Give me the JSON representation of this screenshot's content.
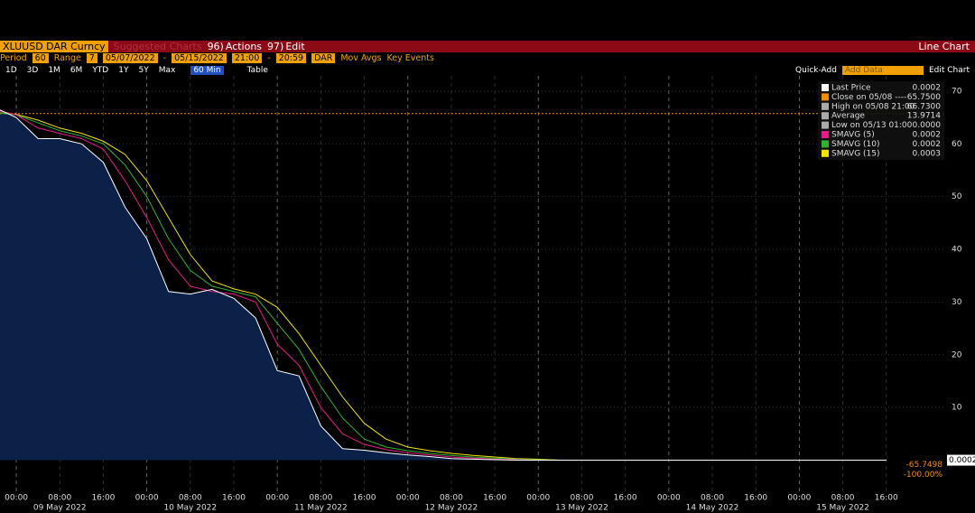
{
  "toolbar": {
    "ticker": "XLUUSD DAR Curncy",
    "suggested": "Suggested Charts",
    "actions_key": "96)",
    "actions": "Actions",
    "edit_key": "97)",
    "edit": "Edit",
    "chart_kind": "Line Chart"
  },
  "settings": {
    "period_label": "Period",
    "period": "60",
    "range_label": "Range",
    "range_key": "7",
    "start": "05/07/2022",
    "dash1": "-",
    "end": "05/15/2022",
    "t_start": "21:00",
    "dash2": "-",
    "t_end": "20:59",
    "tz": "DAR",
    "mov_avgs": "Mov Avgs",
    "key_events": "Key Events"
  },
  "ranges": {
    "buttons": [
      "1D",
      "3D",
      "1M",
      "6M",
      "YTD",
      "1Y",
      "5Y",
      "Max"
    ],
    "interval": "60 Min",
    "table": "Table",
    "quick_add": "Quick-Add",
    "add_data": "Add Data",
    "edit_chart": "Edit Chart"
  },
  "chart_data": {
    "type": "line",
    "x": [
      "2022-05-08 20:00",
      "2022-05-09 00:00",
      "2022-05-09 04:00",
      "2022-05-09 08:00",
      "2022-05-09 12:00",
      "2022-05-09 16:00",
      "2022-05-09 20:00",
      "2022-05-10 00:00",
      "2022-05-10 04:00",
      "2022-05-10 08:00",
      "2022-05-10 12:00",
      "2022-05-10 16:00",
      "2022-05-10 20:00",
      "2022-05-11 00:00",
      "2022-05-11 04:00",
      "2022-05-11 08:00",
      "2022-05-11 12:00",
      "2022-05-11 16:00",
      "2022-05-11 20:00",
      "2022-05-12 00:00",
      "2022-05-12 04:00",
      "2022-05-12 08:00",
      "2022-05-12 12:00",
      "2022-05-12 16:00",
      "2022-05-12 20:00",
      "2022-05-13 00:00",
      "2022-05-13 04:00",
      "2022-05-13 08:00",
      "2022-05-13 12:00",
      "2022-05-13 16:00",
      "2022-05-13 20:00",
      "2022-05-14 00:00",
      "2022-05-14 04:00",
      "2022-05-14 08:00",
      "2022-05-14 12:00",
      "2022-05-14 16:00",
      "2022-05-14 20:00",
      "2022-05-15 00:00",
      "2022-05-15 04:00",
      "2022-05-15 08:00",
      "2022-05-15 12:00",
      "2022-05-15 16:00"
    ],
    "series": [
      {
        "name": "Last Price",
        "color": "#ffffff",
        "legend_value": "0.0002",
        "area_color": "#0b2148",
        "values": [
          66.9,
          65,
          61,
          61,
          60,
          56.5,
          48,
          42,
          32,
          31.5,
          32.4,
          30.7,
          27,
          17,
          16,
          6.5,
          2.2,
          1.9,
          1.4,
          1.0,
          0.7,
          0.3,
          0.2,
          0.1,
          0,
          0,
          0,
          0,
          0,
          0,
          0,
          0,
          0,
          0,
          0,
          0,
          0,
          0,
          0,
          0,
          0,
          0
        ]
      },
      {
        "name": "SMAVG (5)",
        "color": "#e8188c",
        "legend_value": "0.0002",
        "values": [
          66.5,
          65.5,
          63,
          62,
          61,
          59,
          53,
          46,
          38,
          33,
          32,
          31.5,
          30,
          22,
          18,
          10,
          5,
          3,
          2,
          1.4,
          1,
          0.6,
          0.4,
          0.2,
          0.1,
          0,
          0,
          0,
          0,
          0,
          0,
          0,
          0,
          0,
          0,
          0,
          0,
          0,
          0,
          0,
          0,
          0
        ]
      },
      {
        "name": "SMAVG (10)",
        "color": "#2fb32f",
        "legend_value": "0.0002",
        "values": [
          66,
          65.5,
          64,
          62.5,
          61.5,
          60,
          56,
          50,
          42,
          36,
          33,
          32,
          31,
          26,
          21,
          14,
          8,
          4,
          2.5,
          1.8,
          1.3,
          0.9,
          0.6,
          0.4,
          0.2,
          0.1,
          0,
          0,
          0,
          0,
          0,
          0,
          0,
          0,
          0,
          0,
          0,
          0,
          0,
          0,
          0,
          0
        ]
      },
      {
        "name": "SMAVG (15)",
        "color": "#f2e600",
        "legend_value": "0.0003",
        "values": [
          66,
          65.6,
          64.5,
          63,
          62,
          60.5,
          58,
          53,
          46,
          39,
          34,
          32.5,
          31.5,
          29,
          24,
          18,
          12,
          7,
          4,
          2.5,
          1.8,
          1.3,
          0.9,
          0.6,
          0.3,
          0.2,
          0,
          0,
          0,
          0,
          0,
          0,
          0,
          0,
          0,
          0,
          0,
          0,
          0,
          0,
          0,
          0
        ]
      }
    ],
    "legend_extra": [
      {
        "label": "Close on 05/08 ----",
        "value": "65.7500",
        "color": "#f08c00"
      },
      {
        "label": "High on 05/08 21:00",
        "value": "66.7300",
        "color": "#aaaaaa"
      },
      {
        "label": "Average",
        "value": "13.9714",
        "color": "#aaaaaa"
      },
      {
        "label": "Low on 05/13 01:00",
        "value": "0.0000",
        "color": "#aaaaaa"
      }
    ],
    "close_line": 65.75,
    "close_color": "#f08c00",
    "last_label": "0.0002",
    "change_labels": [
      "-65.7498",
      "-100.00%"
    ],
    "xlim": [
      "2022-05-08 21:00",
      "2022-05-16 03:00"
    ],
    "xticks": [
      {
        "value": "2022-05-09 00:00",
        "label": "00:00"
      },
      {
        "value": "2022-05-09 08:00",
        "label": "08:00"
      },
      {
        "value": "2022-05-09 16:00",
        "label": "16:00"
      },
      {
        "value": "2022-05-10 00:00",
        "label": "00:00"
      },
      {
        "value": "2022-05-10 08:00",
        "label": "08:00"
      },
      {
        "value": "2022-05-10 16:00",
        "label": "16:00"
      },
      {
        "value": "2022-05-11 00:00",
        "label": "00:00"
      },
      {
        "value": "2022-05-11 08:00",
        "label": "08:00"
      },
      {
        "value": "2022-05-11 16:00",
        "label": "16:00"
      },
      {
        "value": "2022-05-12 00:00",
        "label": "00:00"
      },
      {
        "value": "2022-05-12 08:00",
        "label": "08:00"
      },
      {
        "value": "2022-05-12 16:00",
        "label": "16:00"
      },
      {
        "value": "2022-05-13 00:00",
        "label": "00:00"
      },
      {
        "value": "2022-05-13 08:00",
        "label": "08:00"
      },
      {
        "value": "2022-05-13 16:00",
        "label": "16:00"
      },
      {
        "value": "2022-05-14 00:00",
        "label": "00:00"
      },
      {
        "value": "2022-05-14 08:00",
        "label": "08:00"
      },
      {
        "value": "2022-05-14 16:00",
        "label": "16:00"
      },
      {
        "value": "2022-05-15 00:00",
        "label": "00:00"
      },
      {
        "value": "2022-05-15 08:00",
        "label": "08:00"
      },
      {
        "value": "2022-05-15 16:00",
        "label": "16:00"
      }
    ],
    "x_day_labels": [
      {
        "value": "2022-05-09 08:00",
        "label": "09 May 2022"
      },
      {
        "value": "2022-05-10 08:00",
        "label": "10 May 2022"
      },
      {
        "value": "2022-05-11 08:00",
        "label": "11 May 2022"
      },
      {
        "value": "2022-05-12 08:00",
        "label": "12 May 2022"
      },
      {
        "value": "2022-05-13 08:00",
        "label": "13 May 2022"
      },
      {
        "value": "2022-05-14 08:00",
        "label": "14 May 2022"
      },
      {
        "value": "2022-05-15 08:00",
        "label": "15 May 2022"
      }
    ],
    "ylim": [
      -5.9,
      72.9
    ],
    "yticks": [
      10,
      20,
      30,
      40,
      50,
      60,
      70
    ],
    "grid": true
  }
}
